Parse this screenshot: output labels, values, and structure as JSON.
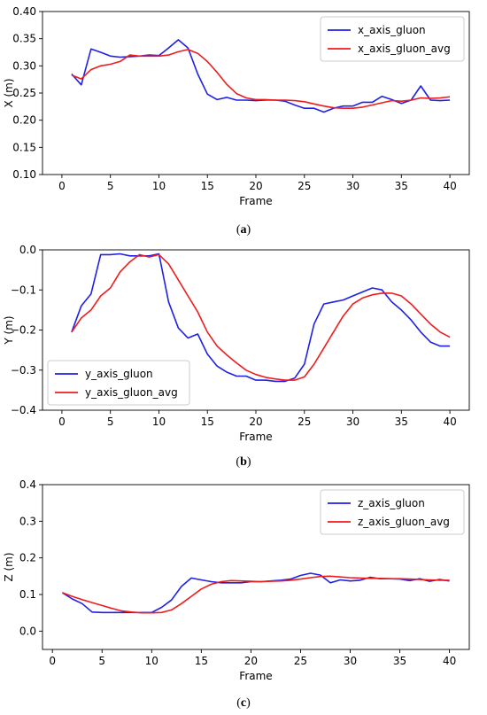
{
  "chart_data": [
    {
      "type": "line",
      "xlabel": "Frame",
      "ylabel": "X (m)",
      "xlim": [
        -2,
        42
      ],
      "ylim": [
        0.1,
        0.4
      ],
      "xticks": [
        0,
        5,
        10,
        15,
        20,
        25,
        30,
        35,
        40
      ],
      "yticks": [
        0.1,
        0.15,
        0.2,
        0.25,
        0.3,
        0.35,
        0.4
      ],
      "ytick_labels": [
        "0.10",
        "0.15",
        "0.20",
        "0.25",
        "0.30",
        "0.35",
        "0.40"
      ],
      "legend_position": "top-right",
      "caption": "a",
      "x": [
        1,
        2,
        3,
        4,
        5,
        6,
        7,
        8,
        9,
        10,
        11,
        12,
        13,
        14,
        15,
        16,
        17,
        18,
        19,
        20,
        21,
        22,
        23,
        24,
        25,
        26,
        27,
        28,
        29,
        30,
        31,
        32,
        33,
        34,
        35,
        36,
        37,
        38,
        39,
        40
      ],
      "series": [
        {
          "name": "x_axis_gluon",
          "color": "#1f1fe8",
          "values": [
            0.285,
            0.265,
            0.331,
            0.325,
            0.318,
            0.316,
            0.317,
            0.318,
            0.32,
            0.319,
            0.333,
            0.348,
            0.333,
            0.285,
            0.248,
            0.238,
            0.242,
            0.237,
            0.237,
            0.236,
            0.237,
            0.237,
            0.235,
            0.228,
            0.222,
            0.222,
            0.215,
            0.222,
            0.226,
            0.226,
            0.233,
            0.233,
            0.244,
            0.238,
            0.231,
            0.237,
            0.263,
            0.237,
            0.236,
            0.237
          ]
        },
        {
          "name": "x_axis_gluon_avg",
          "color": "#ee1c1c",
          "values": [
            0.283,
            0.276,
            0.293,
            0.3,
            0.303,
            0.308,
            0.32,
            0.318,
            0.318,
            0.318,
            0.32,
            0.326,
            0.33,
            0.323,
            0.308,
            0.288,
            0.266,
            0.249,
            0.241,
            0.238,
            0.238,
            0.237,
            0.237,
            0.236,
            0.234,
            0.23,
            0.226,
            0.223,
            0.222,
            0.222,
            0.224,
            0.228,
            0.232,
            0.236,
            0.235,
            0.237,
            0.241,
            0.24,
            0.241,
            0.243
          ]
        }
      ]
    },
    {
      "type": "line",
      "xlabel": "Frame",
      "ylabel": "Y (m)",
      "xlim": [
        -2,
        42
      ],
      "ylim": [
        -0.4,
        0.0
      ],
      "xticks": [
        0,
        5,
        10,
        15,
        20,
        25,
        30,
        35,
        40
      ],
      "yticks": [
        -0.4,
        -0.3,
        -0.2,
        -0.1,
        0.0
      ],
      "ytick_labels": [
        "−0.4",
        "−0.3",
        "−0.2",
        "−0.1",
        "0.0"
      ],
      "legend_position": "bottom-left",
      "caption": "b",
      "x": [
        1,
        2,
        3,
        4,
        5,
        6,
        7,
        8,
        9,
        10,
        11,
        12,
        13,
        14,
        15,
        16,
        17,
        18,
        19,
        20,
        21,
        22,
        23,
        24,
        25,
        26,
        27,
        28,
        29,
        30,
        31,
        32,
        33,
        34,
        35,
        36,
        37,
        38,
        39,
        40
      ],
      "series": [
        {
          "name": "y_axis_gluon",
          "color": "#1f1fe8",
          "values": [
            -0.205,
            -0.14,
            -0.11,
            -0.012,
            -0.012,
            -0.01,
            -0.015,
            -0.015,
            -0.015,
            -0.01,
            -0.13,
            -0.195,
            -0.22,
            -0.21,
            -0.26,
            -0.29,
            -0.305,
            -0.315,
            -0.315,
            -0.325,
            -0.325,
            -0.328,
            -0.328,
            -0.32,
            -0.285,
            -0.185,
            -0.135,
            -0.13,
            -0.125,
            -0.115,
            -0.105,
            -0.095,
            -0.1,
            -0.13,
            -0.15,
            -0.175,
            -0.205,
            -0.23,
            -0.24,
            -0.24
          ]
        },
        {
          "name": "y_axis_gluon_avg",
          "color": "#ee1c1c",
          "values": [
            -0.205,
            -0.17,
            -0.15,
            -0.115,
            -0.095,
            -0.055,
            -0.03,
            -0.012,
            -0.018,
            -0.012,
            -0.035,
            -0.075,
            -0.115,
            -0.155,
            -0.205,
            -0.24,
            -0.262,
            -0.282,
            -0.3,
            -0.311,
            -0.318,
            -0.322,
            -0.325,
            -0.325,
            -0.317,
            -0.285,
            -0.245,
            -0.205,
            -0.165,
            -0.135,
            -0.12,
            -0.112,
            -0.108,
            -0.108,
            -0.115,
            -0.135,
            -0.16,
            -0.185,
            -0.205,
            -0.218
          ]
        }
      ]
    },
    {
      "type": "line",
      "xlabel": "Frame",
      "ylabel": "Z (m)",
      "xlim": [
        -1,
        42
      ],
      "ylim": [
        -0.05,
        0.4
      ],
      "xticks": [
        0,
        5,
        10,
        15,
        20,
        25,
        30,
        35,
        40
      ],
      "yticks": [
        0.0,
        0.1,
        0.2,
        0.3,
        0.4
      ],
      "ytick_labels": [
        "0.0",
        "0.1",
        "0.2",
        "0.3",
        "0.4"
      ],
      "legend_position": "top-right",
      "caption": "c",
      "x": [
        1,
        2,
        3,
        4,
        5,
        6,
        7,
        8,
        9,
        10,
        11,
        12,
        13,
        14,
        15,
        16,
        17,
        18,
        19,
        20,
        21,
        22,
        23,
        24,
        25,
        26,
        27,
        28,
        29,
        30,
        31,
        32,
        33,
        34,
        35,
        36,
        37,
        38,
        39,
        40
      ],
      "series": [
        {
          "name": "z_axis_gluon",
          "color": "#1f1fe8",
          "values": [
            0.105,
            0.088,
            0.075,
            0.052,
            0.051,
            0.051,
            0.051,
            0.051,
            0.051,
            0.051,
            0.065,
            0.085,
            0.122,
            0.145,
            0.14,
            0.135,
            0.132,
            0.132,
            0.132,
            0.135,
            0.135,
            0.137,
            0.139,
            0.142,
            0.152,
            0.158,
            0.153,
            0.132,
            0.14,
            0.137,
            0.139,
            0.147,
            0.143,
            0.143,
            0.142,
            0.138,
            0.143,
            0.136,
            0.141,
            0.137
          ]
        },
        {
          "name": "z_axis_gluon_avg",
          "color": "#ee1c1c",
          "values": [
            0.105,
            0.095,
            0.086,
            0.078,
            0.07,
            0.062,
            0.055,
            0.052,
            0.05,
            0.05,
            0.051,
            0.058,
            0.075,
            0.095,
            0.115,
            0.128,
            0.135,
            0.138,
            0.137,
            0.136,
            0.135,
            0.136,
            0.137,
            0.139,
            0.142,
            0.146,
            0.149,
            0.15,
            0.148,
            0.146,
            0.145,
            0.144,
            0.144,
            0.143,
            0.143,
            0.142,
            0.141,
            0.14,
            0.139,
            0.139
          ]
        }
      ]
    }
  ]
}
